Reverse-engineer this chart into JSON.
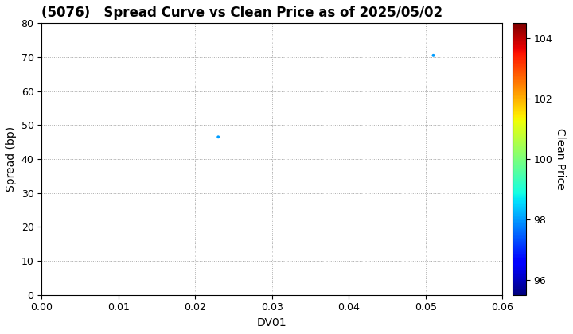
{
  "title": "(5076)   Spread Curve vs Clean Price as of 2025/05/02",
  "xlabel": "DV01",
  "ylabel": "Spread (bp)",
  "colorbar_label": "Clean Price",
  "points": [
    {
      "dv01": 0.023,
      "spread": 46.5,
      "price": 98.0
    },
    {
      "dv01": 0.051,
      "spread": 70.5,
      "price": 98.0
    }
  ],
  "xlim": [
    0.0,
    0.06
  ],
  "ylim": [
    0,
    80
  ],
  "xticks": [
    0.0,
    0.01,
    0.02,
    0.03,
    0.04,
    0.05,
    0.06
  ],
  "yticks": [
    0,
    10,
    20,
    30,
    40,
    50,
    60,
    70,
    80
  ],
  "cmap_name": "jet",
  "cmap_vmin": 95.5,
  "cmap_vmax": 104.5,
  "colorbar_ticks": [
    96,
    98,
    100,
    102,
    104
  ],
  "title_fontsize": 12,
  "axis_label_fontsize": 10,
  "tick_fontsize": 9,
  "marker_size": 8,
  "background_color": "#ffffff",
  "grid_color": "#aaaaaa",
  "grid_linestyle": ":"
}
